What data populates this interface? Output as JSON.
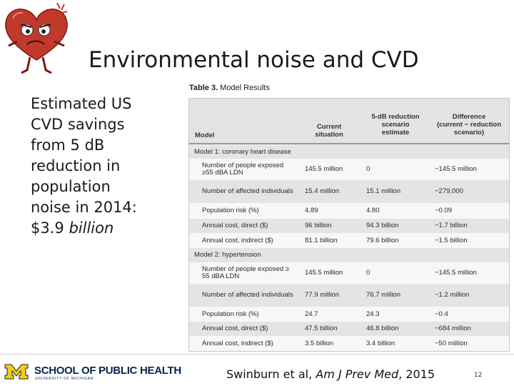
{
  "title": "Environmental noise and CVD",
  "body": {
    "line1": "Estimated US",
    "line2": "CVD savings",
    "line3": "from 5 dB",
    "line4": "reduction in",
    "line5": "population",
    "line6": "noise in 2014:",
    "line7_value": "$3.9",
    "line7_unit": "billion"
  },
  "table": {
    "caption_label": "Table 3.",
    "caption_text": "Model Results",
    "headers": {
      "model": "Model",
      "current_1": "Current",
      "current_2": "situation",
      "reduction_1": "5-dB reduction",
      "reduction_2": "scenario",
      "reduction_3": "estimate",
      "difference_1": "Difference",
      "difference_2": "(current − reduction",
      "difference_3": "scenario)"
    },
    "model1": {
      "section": "Model 1: coronary heart disease",
      "rows": [
        {
          "label": "Number of people exposed ≥55 dBA LDN",
          "current": "145.5 million",
          "reduction": "0",
          "difference": "−145.5 million"
        },
        {
          "label": "Number of affected individuals",
          "current": "15.4 million",
          "reduction": "15.1 million",
          "difference": "−279,000"
        },
        {
          "label": "Population risk (%)",
          "current": "4.89",
          "reduction": "4.80",
          "difference": "−0.09"
        },
        {
          "label": "Annual cost, direct ($)",
          "current": "96 billion",
          "reduction": "94.3 billion",
          "difference": "−1.7 billion"
        },
        {
          "label": "Annual cost, indirect ($)",
          "current": "81.1 billion",
          "reduction": "79.6 billion",
          "difference": "−1.5 billion"
        }
      ]
    },
    "model2": {
      "section": "Model 2: hypertension",
      "rows": [
        {
          "label": "Number of people exposed ≥ 55 dBA LDN",
          "current": "145.5 million",
          "reduction": "0",
          "difference": "−145.5 million"
        },
        {
          "label": "Number of affected individuals",
          "current": "77.9 million",
          "reduction": "76.7 million",
          "difference": "−1.2 million"
        },
        {
          "label": "Population risk (%)",
          "current": "24.7",
          "reduction": "24.3",
          "difference": "−0.4"
        },
        {
          "label": "Annual cost, direct ($)",
          "current": "47.5 billion",
          "reduction": "46.8 billion",
          "difference": "−684 million"
        },
        {
          "label": "Annual cost, indirect ($)",
          "current": "3.5 billion",
          "reduction": "3.4 billion",
          "difference": "−50 million"
        }
      ]
    }
  },
  "footer": {
    "school": "SCHOOL OF PUBLIC HEALTH",
    "university": "UNIVERSITY OF MICHIGAN",
    "citation_authors": "Swinburn et al,",
    "citation_journal": "Am J Prev Med",
    "citation_year": ", 2015",
    "page": "12"
  },
  "colors": {
    "michigan_blue": "#00274c",
    "michigan_maize": "#ffcb05",
    "heart_red": "#c0392b"
  }
}
